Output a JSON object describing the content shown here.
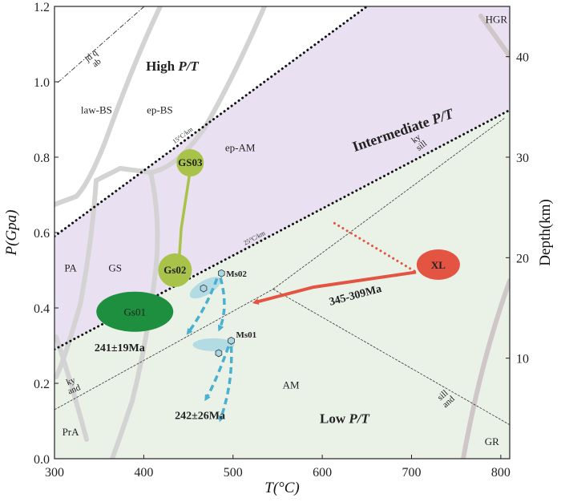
{
  "chart_data": {
    "type": "phase-diagram",
    "xlabel": "T(°C)",
    "ylabel": "P(Gpa)",
    "y2label": "Depth(km)",
    "xlim": [
      300,
      810
    ],
    "ylim": [
      0,
      1.2
    ],
    "y2lim": [
      0,
      45
    ],
    "x_ticks": [
      300,
      400,
      500,
      600,
      700,
      800
    ],
    "y_ticks": [
      "0.0",
      "0.2",
      "0.4",
      "0.6",
      "0.8",
      "1.0",
      "1.2"
    ],
    "y2_ticks": [
      10,
      20,
      30,
      40
    ],
    "colors": {
      "intermediate_fill": "#e9e1f1",
      "low_fill": "#eaf2e8",
      "grey_lines": "#d3d3d3",
      "gs_green": "#a9c24a",
      "gs01_green": "#1d8f3e",
      "age_green": "#2a8a3a",
      "ms_blue": "#4ab0cf",
      "ms_fill": "#a9d7e3",
      "xl_red": "#e35443",
      "hgr_line": "#cfc7c7"
    },
    "regions": [
      {
        "label": "High P/T",
        "T": 432,
        "P": 1.03
      },
      {
        "label": "Intermediate P/T",
        "T": 692,
        "P": 0.86
      },
      {
        "label": "Low P/T",
        "T": 625,
        "P": 0.095
      }
    ],
    "gradients": [
      {
        "label": "15°C/km",
        "points": [
          [
            300,
            0.59
          ],
          [
            650,
            1.2
          ]
        ]
      },
      {
        "label": "25°C/km",
        "points": [
          [
            300,
            0.29
          ],
          [
            810,
            0.925
          ]
        ]
      }
    ],
    "facies_labels": [
      {
        "label": "law-BS",
        "T": 347,
        "P": 0.925
      },
      {
        "label": "ep-BS",
        "T": 418,
        "P": 0.925
      },
      {
        "label": "ep-AM",
        "T": 508,
        "P": 0.825
      },
      {
        "label": "GS",
        "T": 368,
        "P": 0.505
      },
      {
        "label": "PA",
        "T": 318,
        "P": 0.505
      },
      {
        "label": "AM",
        "T": 565,
        "P": 0.195
      },
      {
        "label": "PrA",
        "T": 318,
        "P": 0.07
      },
      {
        "label": "GR",
        "T": 790,
        "P": 0.045
      },
      {
        "label": "HGR",
        "T": 795,
        "P": 1.165
      }
    ],
    "mineral_labels": [
      {
        "top": "jd q",
        "bottom": "ab",
        "T": 344,
        "P": 1.06
      },
      {
        "top": "ky",
        "bottom": "sill",
        "T": 708,
        "P": 0.84
      },
      {
        "top": "ky",
        "bottom": "and",
        "T": 320,
        "P": 0.195
      },
      {
        "top": "sill",
        "bottom": "and",
        "T": 738,
        "P": 0.16
      }
    ],
    "aluminosilicate": {
      "triple_point": [
        545,
        0.45
      ],
      "ky_sill": [
        [
          545,
          0.45
        ],
        [
          805,
          0.905
        ]
      ],
      "ky_and": [
        [
          300,
          0.13
        ],
        [
          545,
          0.45
        ]
      ],
      "sill_and": [
        [
          545,
          0.45
        ],
        [
          810,
          0.09
        ]
      ]
    },
    "samples": [
      {
        "name": "GS03",
        "kind": "point",
        "T": 452,
        "P": 0.785
      },
      {
        "name": "Gs02",
        "kind": "point",
        "T": 435,
        "P": 0.5
      },
      {
        "name": "Gs01",
        "kind": "ellipse",
        "T": 390,
        "P": 0.39
      },
      {
        "name": "Ms02",
        "kind": "point",
        "T": 487,
        "P": 0.492
      },
      {
        "name": "Ms01",
        "kind": "point",
        "T": 498,
        "P": 0.313
      },
      {
        "name": "XL",
        "kind": "point",
        "T": 730,
        "P": 0.515
      }
    ],
    "ages": [
      {
        "label": "241±19Ma",
        "T": 373,
        "P": 0.285
      },
      {
        "label": "242±26Ma",
        "T": 463,
        "P": 0.105
      },
      {
        "label": "345-309Ma",
        "T": 638,
        "P": 0.425
      }
    ],
    "paths": [
      {
        "from": "GS03",
        "points": [
          [
            452,
            0.765
          ],
          [
            442,
            0.61
          ],
          [
            438,
            0.47
          ]
        ]
      },
      {
        "from": "XL",
        "points": [
          [
            705,
            0.495
          ],
          [
            590,
            0.455
          ],
          [
            525,
            0.415
          ]
        ]
      }
    ]
  }
}
